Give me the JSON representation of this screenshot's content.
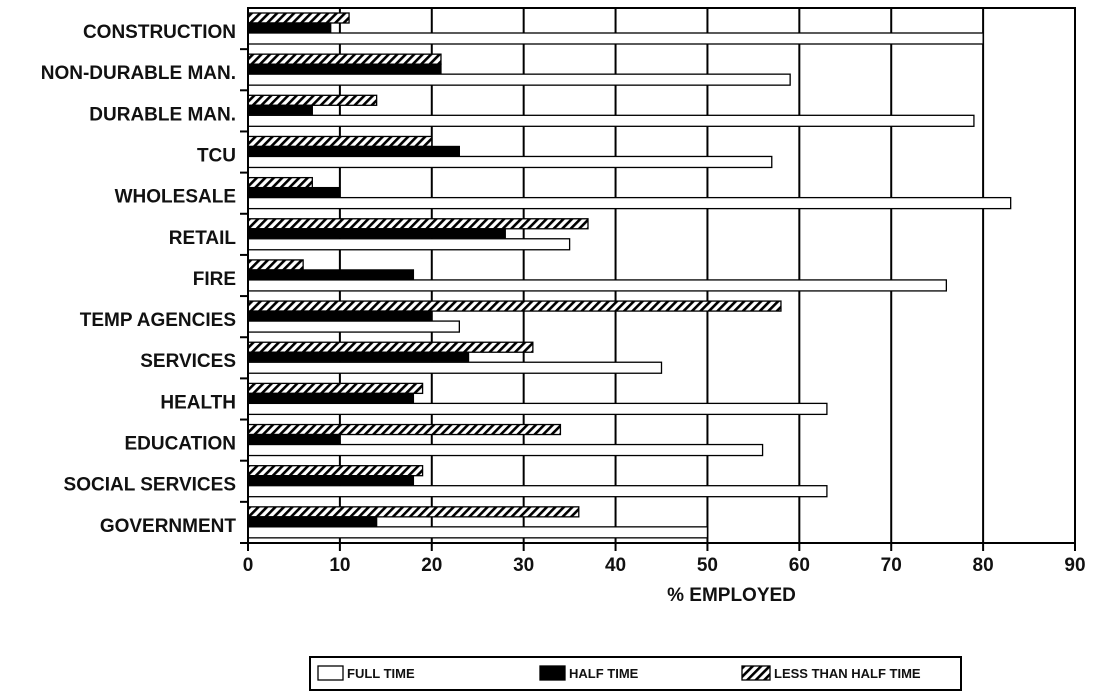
{
  "chart_data": {
    "type": "bar",
    "orientation": "horizontal",
    "categories": [
      "CONSTRUCTION",
      "NON-DURABLE MAN.",
      "DURABLE MAN.",
      "TCU",
      "WHOLESALE",
      "RETAIL",
      "FIRE",
      "TEMP AGENCIES",
      "SERVICES",
      "HEALTH",
      "EDUCATION",
      "SOCIAL SERVICES",
      "GOVERNMENT"
    ],
    "series": [
      {
        "name": "FULL TIME",
        "values": [
          80,
          59,
          79,
          57,
          83,
          35,
          76,
          23,
          45,
          63,
          56,
          63,
          50
        ],
        "color": "#ffffff",
        "pattern": "solid-white"
      },
      {
        "name": "HALF TIME",
        "values": [
          9,
          21,
          7,
          23,
          10,
          28,
          18,
          20,
          24,
          18,
          10,
          18,
          14
        ],
        "color": "#000000",
        "pattern": "solid-black"
      },
      {
        "name": "LESS THAN HALF TIME",
        "values": [
          11,
          21,
          14,
          20,
          7,
          37,
          6,
          58,
          31,
          19,
          34,
          19,
          36
        ],
        "color": "#000000",
        "pattern": "diagonal-hatch"
      }
    ],
    "xlabel": "% EMPLOYED",
    "ylabel": "",
    "xlim": [
      0,
      90
    ],
    "xticks": [
      0,
      10,
      20,
      30,
      40,
      50,
      60,
      70,
      80,
      90
    ],
    "grid": true,
    "legend_position": "bottom"
  }
}
